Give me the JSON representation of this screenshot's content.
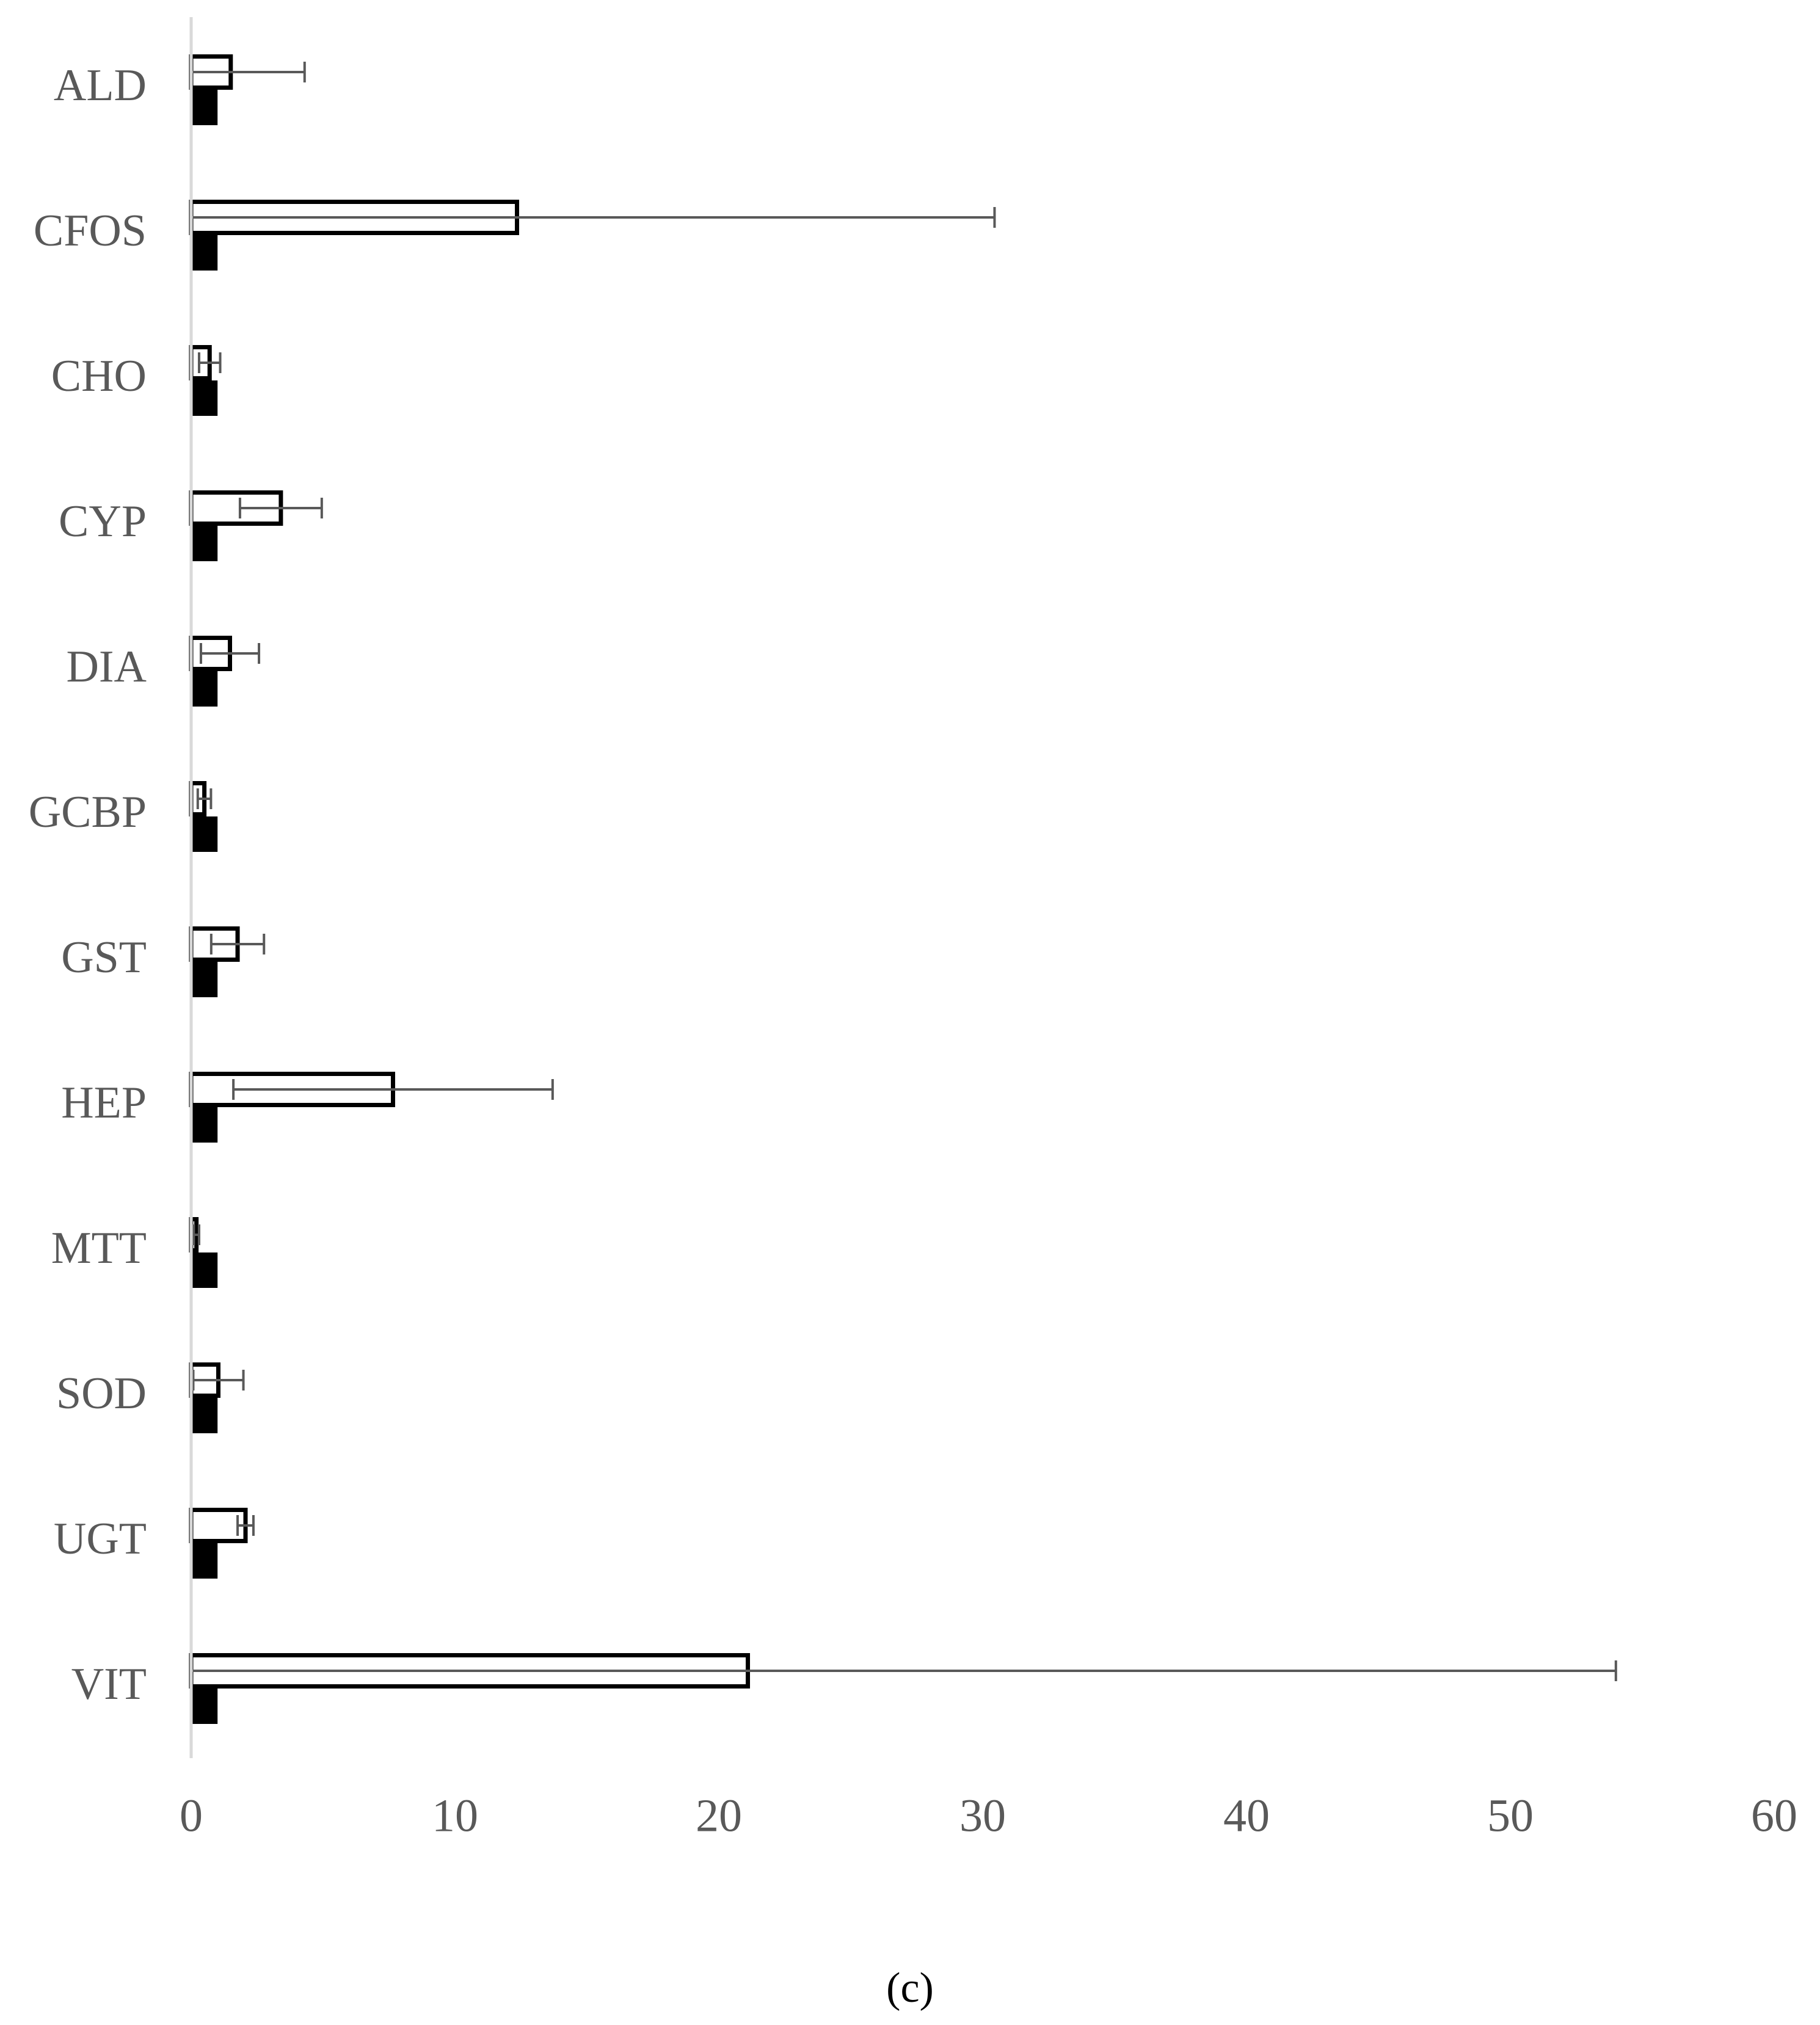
{
  "chart_data": {
    "type": "bar",
    "orientation": "horizontal",
    "categories": [
      "ALD",
      "CFOS",
      "CHO",
      "CYP",
      "DIA",
      "GCBP",
      "GST",
      "HEP",
      "MTT",
      "SOD",
      "UGT",
      "VIT"
    ],
    "series": [
      {
        "color": "#ffffff",
        "values": [
          1.5,
          12.35,
          0.7,
          3.4,
          1.47,
          0.5,
          1.76,
          7.65,
          0.2,
          1.03,
          2.06,
          21.1
        ],
        "errors": [
          2.8,
          18.1,
          0.4,
          1.55,
          1.1,
          0.25,
          1.0,
          6.05,
          0.1,
          0.95,
          0.3,
          32.9
        ]
      },
      {
        "color": "#000000",
        "values": [
          1,
          1,
          1,
          1,
          1,
          1,
          1,
          1,
          1,
          1,
          1,
          1
        ]
      }
    ],
    "xlim": [
      0,
      60
    ],
    "xticks": [
      0,
      10,
      20,
      30,
      40,
      50,
      60
    ],
    "caption": "(c)"
  }
}
